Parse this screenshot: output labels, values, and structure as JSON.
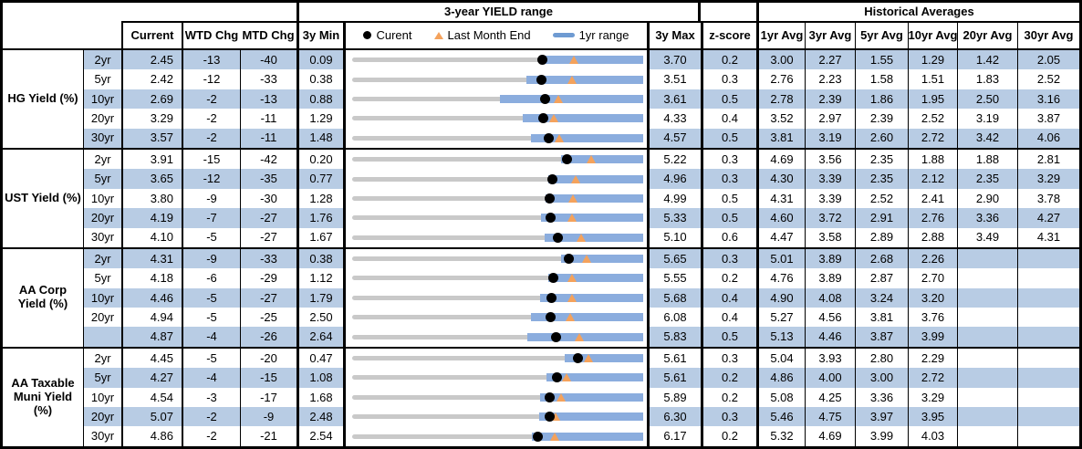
{
  "header": {
    "range_title": "3-year YIELD range",
    "historical_title": "Historical Averages",
    "current": "Current",
    "wtd_chg": "WTD Chg",
    "mtd_chg": "MTD Chg",
    "min_3y": "3y Min",
    "max_3y": "3y Max",
    "z_score": "z-score",
    "avg_headers": [
      "1yr Avg",
      "3yr Avg",
      "5yr Avg",
      "10yr Avg",
      "20yr Avg",
      "30yr Avg"
    ],
    "legend": {
      "current": "Curent",
      "last_month_end": "Last Month End",
      "range_1yr": "1yr range"
    }
  },
  "colors": {
    "stripe": "#b8cce4",
    "range_bar": "#8badde",
    "track": "#c9c9c9",
    "marker_current": "#000000",
    "marker_month_end": "#f4a25c",
    "border": "#000000"
  },
  "chart_data": {
    "type": "table",
    "title": "3-year YIELD range",
    "legend": [
      "Curent",
      "Last Month End",
      "1yr range"
    ],
    "columns": [
      "Current",
      "WTD Chg",
      "MTD Chg",
      "3y Min",
      "3-year YIELD range",
      "3y Max",
      "z-score",
      "1yr Avg",
      "3yr Avg",
      "5yr Avg",
      "10yr Avg",
      "20yr Avg",
      "30yr Avg"
    ],
    "row_chart_note": "each row: gray track spans 3y min-max; blue bar = 1yr range; black dot = current; orange triangle = last month end",
    "groups": [
      {
        "label": "HG Yield (%)",
        "rows": [
          {
            "tenor": "2yr",
            "current": "2.45",
            "wtd_chg": "-13",
            "mtd_chg": "-40",
            "min_3y": "0.09",
            "max_3y": "3.70",
            "z_score": "0.2",
            "avgs": [
              "3.00",
              "2.27",
              "1.55",
              "1.29",
              "1.42",
              "2.05"
            ],
            "last_month_end": 2.85,
            "range_1yr": [
              2.45,
              3.7
            ]
          },
          {
            "tenor": "5yr",
            "current": "2.42",
            "wtd_chg": "-12",
            "mtd_chg": "-33",
            "min_3y": "0.38",
            "max_3y": "3.51",
            "z_score": "0.3",
            "avgs": [
              "2.76",
              "2.23",
              "1.58",
              "1.51",
              "1.83",
              "2.52"
            ],
            "last_month_end": 2.75,
            "range_1yr": [
              2.25,
              3.51
            ]
          },
          {
            "tenor": "10yr",
            "current": "2.69",
            "wtd_chg": "-2",
            "mtd_chg": "-13",
            "min_3y": "0.88",
            "max_3y": "3.61",
            "z_score": "0.5",
            "avgs": [
              "2.78",
              "2.39",
              "1.86",
              "1.95",
              "2.50",
              "3.16"
            ],
            "last_month_end": 2.82,
            "range_1yr": [
              2.27,
              3.61
            ]
          },
          {
            "tenor": "20yr",
            "current": "3.29",
            "wtd_chg": "-2",
            "mtd_chg": "-11",
            "min_3y": "1.29",
            "max_3y": "4.33",
            "z_score": "0.4",
            "avgs": [
              "3.52",
              "2.97",
              "2.39",
              "2.52",
              "3.19",
              "3.87"
            ],
            "last_month_end": 3.4,
            "range_1yr": [
              3.07,
              4.33
            ]
          },
          {
            "tenor": "30yr",
            "current": "3.57",
            "wtd_chg": "-2",
            "mtd_chg": "-11",
            "min_3y": "1.48",
            "max_3y": "4.57",
            "z_score": "0.5",
            "avgs": [
              "3.81",
              "3.19",
              "2.60",
              "2.72",
              "3.42",
              "4.06"
            ],
            "last_month_end": 3.68,
            "range_1yr": [
              3.38,
              4.57
            ]
          }
        ]
      },
      {
        "label": "UST Yield (%)",
        "rows": [
          {
            "tenor": "2yr",
            "current": "3.91",
            "wtd_chg": "-15",
            "mtd_chg": "-42",
            "min_3y": "0.20",
            "max_3y": "5.22",
            "z_score": "0.3",
            "avgs": [
              "4.69",
              "3.56",
              "2.35",
              "1.88",
              "1.88",
              "2.81"
            ],
            "last_month_end": 4.33,
            "range_1yr": [
              3.8,
              5.22
            ]
          },
          {
            "tenor": "5yr",
            "current": "3.65",
            "wtd_chg": "-12",
            "mtd_chg": "-35",
            "min_3y": "0.77",
            "max_3y": "4.96",
            "z_score": "0.3",
            "avgs": [
              "4.30",
              "3.39",
              "2.35",
              "2.12",
              "2.35",
              "3.29"
            ],
            "last_month_end": 4.0,
            "range_1yr": [
              3.59,
              4.96
            ]
          },
          {
            "tenor": "10yr",
            "current": "3.80",
            "wtd_chg": "-9",
            "mtd_chg": "-30",
            "min_3y": "1.28",
            "max_3y": "4.99",
            "z_score": "0.5",
            "avgs": [
              "4.31",
              "3.39",
              "2.52",
              "2.41",
              "2.90",
              "3.78"
            ],
            "last_month_end": 4.1,
            "range_1yr": [
              3.75,
              4.99
            ]
          },
          {
            "tenor": "20yr",
            "current": "4.19",
            "wtd_chg": "-7",
            "mtd_chg": "-27",
            "min_3y": "1.76",
            "max_3y": "5.33",
            "z_score": "0.5",
            "avgs": [
              "4.60",
              "3.72",
              "2.91",
              "2.76",
              "3.36",
              "4.27"
            ],
            "last_month_end": 4.46,
            "range_1yr": [
              4.08,
              5.33
            ]
          },
          {
            "tenor": "30yr",
            "current": "4.10",
            "wtd_chg": "-5",
            "mtd_chg": "-27",
            "min_3y": "1.67",
            "max_3y": "5.10",
            "z_score": "0.6",
            "avgs": [
              "4.47",
              "3.58",
              "2.89",
              "2.88",
              "3.49",
              "4.31"
            ],
            "last_month_end": 4.37,
            "range_1yr": [
              3.94,
              5.1
            ]
          }
        ]
      },
      {
        "label": "AA Corp Yield (%)",
        "rows": [
          {
            "tenor": "2yr",
            "current": "4.31",
            "wtd_chg": "-9",
            "mtd_chg": "-33",
            "min_3y": "0.38",
            "max_3y": "5.65",
            "z_score": "0.3",
            "avgs": [
              "5.01",
              "3.89",
              "2.68",
              "2.26",
              "",
              ""
            ],
            "last_month_end": 4.64,
            "range_1yr": [
              4.17,
              5.65
            ]
          },
          {
            "tenor": "5yr",
            "current": "4.18",
            "wtd_chg": "-6",
            "mtd_chg": "-29",
            "min_3y": "1.12",
            "max_3y": "5.55",
            "z_score": "0.2",
            "avgs": [
              "4.76",
              "3.89",
              "2.87",
              "2.70",
              "",
              ""
            ],
            "last_month_end": 4.47,
            "range_1yr": [
              4.1,
              5.55
            ]
          },
          {
            "tenor": "10yr",
            "current": "4.46",
            "wtd_chg": "-5",
            "mtd_chg": "-27",
            "min_3y": "1.79",
            "max_3y": "5.68",
            "z_score": "0.4",
            "avgs": [
              "4.90",
              "4.08",
              "3.24",
              "3.20",
              "",
              ""
            ],
            "last_month_end": 4.73,
            "range_1yr": [
              4.3,
              5.68
            ]
          },
          {
            "tenor": "20yr",
            "current": "4.94",
            "wtd_chg": "-5",
            "mtd_chg": "-25",
            "min_3y": "2.50",
            "max_3y": "6.08",
            "z_score": "0.4",
            "avgs": [
              "5.27",
              "4.56",
              "3.81",
              "3.76",
              "",
              ""
            ],
            "last_month_end": 5.19,
            "range_1yr": [
              4.7,
              6.08
            ]
          },
          {
            "tenor": "",
            "current": "4.87",
            "wtd_chg": "-4",
            "mtd_chg": "-26",
            "min_3y": "2.64",
            "max_3y": "5.83",
            "z_score": "0.5",
            "avgs": [
              "5.13",
              "4.46",
              "3.87",
              "3.99",
              "",
              ""
            ],
            "last_month_end": 5.13,
            "range_1yr": [
              4.56,
              5.83
            ]
          }
        ]
      },
      {
        "label": "AA Taxable Muni Yield (%)",
        "rows": [
          {
            "tenor": "2yr",
            "current": "4.45",
            "wtd_chg": "-5",
            "mtd_chg": "-20",
            "min_3y": "0.47",
            "max_3y": "5.61",
            "z_score": "0.3",
            "avgs": [
              "5.04",
              "3.93",
              "2.80",
              "2.29",
              "",
              ""
            ],
            "last_month_end": 4.65,
            "range_1yr": [
              4.23,
              5.61
            ]
          },
          {
            "tenor": "5yr",
            "current": "4.27",
            "wtd_chg": "-4",
            "mtd_chg": "-15",
            "min_3y": "1.08",
            "max_3y": "5.61",
            "z_score": "0.2",
            "avgs": [
              "4.86",
              "4.00",
              "3.00",
              "2.72",
              "",
              ""
            ],
            "last_month_end": 4.42,
            "range_1yr": [
              4.1,
              5.61
            ]
          },
          {
            "tenor": "10yr",
            "current": "4.54",
            "wtd_chg": "-3",
            "mtd_chg": "-17",
            "min_3y": "1.68",
            "max_3y": "5.89",
            "z_score": "0.2",
            "avgs": [
              "5.08",
              "4.25",
              "3.36",
              "3.29",
              "",
              ""
            ],
            "last_month_end": 4.71,
            "range_1yr": [
              4.4,
              5.89
            ]
          },
          {
            "tenor": "20yr",
            "current": "5.07",
            "wtd_chg": "-2",
            "mtd_chg": "-9",
            "min_3y": "2.48",
            "max_3y": "6.30",
            "z_score": "0.3",
            "avgs": [
              "5.46",
              "4.75",
              "3.97",
              "3.95",
              "",
              ""
            ],
            "last_month_end": 5.16,
            "range_1yr": [
              4.93,
              6.3
            ]
          },
          {
            "tenor": "30yr",
            "current": "4.86",
            "wtd_chg": "-2",
            "mtd_chg": "-21",
            "min_3y": "2.54",
            "max_3y": "6.17",
            "z_score": "0.2",
            "avgs": [
              "5.32",
              "4.69",
              "3.99",
              "4.03",
              "",
              ""
            ],
            "last_month_end": 5.07,
            "range_1yr": [
              4.78,
              6.17
            ]
          }
        ]
      }
    ]
  }
}
